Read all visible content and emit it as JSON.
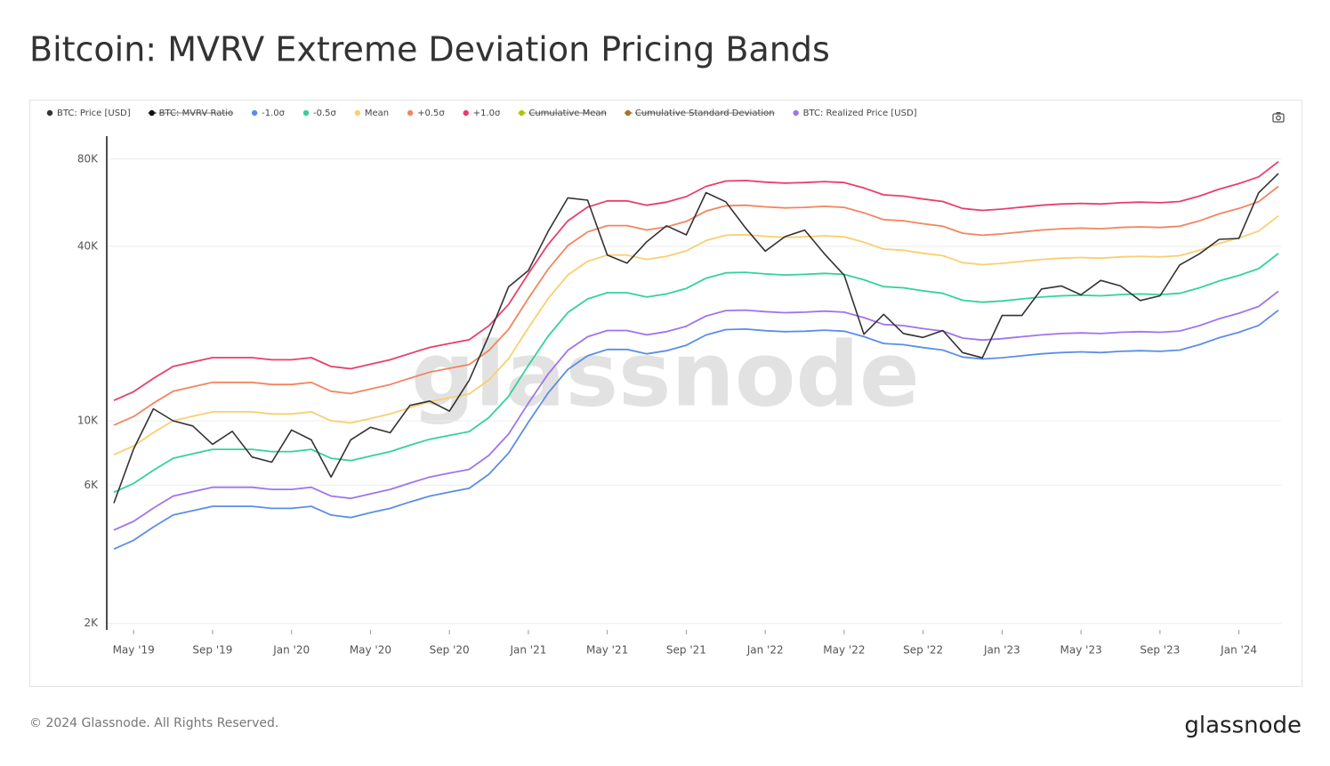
{
  "chart_data": {
    "type": "line",
    "title": "Bitcoin: MVRV Extreme Deviation Pricing Bands",
    "watermark": "glassnode",
    "log_scale": true,
    "grid": true,
    "legend": "top-left",
    "x": [
      "2019-04",
      "2019-05",
      "2019-06",
      "2019-07",
      "2019-08",
      "2019-09",
      "2019-10",
      "2019-11",
      "2019-12",
      "2020-01",
      "2020-02",
      "2020-03",
      "2020-04",
      "2020-05",
      "2020-06",
      "2020-07",
      "2020-08",
      "2020-09",
      "2020-10",
      "2020-11",
      "2020-12",
      "2021-01",
      "2021-02",
      "2021-03",
      "2021-04",
      "2021-05",
      "2021-06",
      "2021-07",
      "2021-08",
      "2021-09",
      "2021-10",
      "2021-11",
      "2021-12",
      "2022-01",
      "2022-02",
      "2022-03",
      "2022-04",
      "2022-05",
      "2022-06",
      "2022-07",
      "2022-08",
      "2022-09",
      "2022-10",
      "2022-11",
      "2022-12",
      "2023-01",
      "2023-02",
      "2023-03",
      "2023-04",
      "2023-05",
      "2023-06",
      "2023-07",
      "2023-08",
      "2023-09",
      "2023-10",
      "2023-11",
      "2023-12",
      "2024-01",
      "2024-02",
      "2024-03"
    ],
    "xlim": [
      "2019-04",
      "2024-03"
    ],
    "xticks": [
      {
        "value": "2019-05",
        "label": "May '19"
      },
      {
        "value": "2019-09",
        "label": "Sep '19"
      },
      {
        "value": "2020-01",
        "label": "Jan '20"
      },
      {
        "value": "2020-05",
        "label": "May '20"
      },
      {
        "value": "2020-09",
        "label": "Sep '20"
      },
      {
        "value": "2021-01",
        "label": "Jan '21"
      },
      {
        "value": "2021-05",
        "label": "May '21"
      },
      {
        "value": "2021-09",
        "label": "Sep '21"
      },
      {
        "value": "2022-01",
        "label": "Jan '22"
      },
      {
        "value": "2022-05",
        "label": "May '22"
      },
      {
        "value": "2022-09",
        "label": "Sep '22"
      },
      {
        "value": "2023-01",
        "label": "Jan '23"
      },
      {
        "value": "2023-05",
        "label": "May '23"
      },
      {
        "value": "2023-09",
        "label": "Sep '23"
      },
      {
        "value": "2024-01",
        "label": "Jan '24"
      }
    ],
    "ylim": [
      1900,
      96000
    ],
    "yticks": [
      {
        "value": 2000,
        "label": "2K"
      },
      {
        "value": 6000,
        "label": "6K"
      },
      {
        "value": 10000,
        "label": "10K"
      },
      {
        "value": 40000,
        "label": "40K"
      },
      {
        "value": 80000,
        "label": "80K"
      }
    ],
    "series": [
      {
        "name": "BTC: Price [USD]",
        "color": "#333333",
        "values": [
          5200,
          8000,
          11000,
          10000,
          9600,
          8300,
          9200,
          7500,
          7200,
          9300,
          8600,
          6400,
          8600,
          9500,
          9100,
          11300,
          11700,
          10800,
          13800,
          19700,
          29000,
          33000,
          45000,
          58800,
          57700,
          37300,
          35000,
          41500,
          47100,
          43800,
          61300,
          57000,
          46300,
          38500,
          43200,
          45500,
          37700,
          31800,
          19900,
          23300,
          20000,
          19400,
          20500,
          17200,
          16500,
          23100,
          23100,
          28500,
          29200,
          27200,
          30500,
          29200,
          26000,
          27000,
          34500,
          37700,
          42300,
          42600,
          61200,
          71300
        ]
      },
      {
        "name": "BTC: MVRV Ratio",
        "color": "#111111",
        "hidden": true
      },
      {
        "name": "-1.0σ",
        "color": "#5b8ee6",
        "values": [
          3610,
          3870,
          4300,
          4730,
          4900,
          5070,
          5070,
          5070,
          4990,
          4990,
          5070,
          4730,
          4640,
          4820,
          4990,
          5250,
          5500,
          5680,
          5850,
          6540,
          7740,
          9890,
          12470,
          15050,
          16770,
          17630,
          17630,
          17030,
          17460,
          18230,
          19780,
          20640,
          20730,
          20470,
          20300,
          20380,
          20550,
          20380,
          19520,
          18490,
          18320,
          17890,
          17540,
          16600,
          16340,
          16510,
          16770,
          17030,
          17200,
          17290,
          17200,
          17370,
          17460,
          17370,
          17540,
          18320,
          19350,
          20210,
          21330,
          24080
        ]
      },
      {
        "name": "-0.5σ",
        "color": "#33d1a0",
        "values": [
          5670,
          6080,
          6750,
          7430,
          7700,
          7970,
          7970,
          7970,
          7830,
          7830,
          7970,
          7430,
          7290,
          7560,
          7830,
          8240,
          8640,
          8910,
          9180,
          10260,
          12150,
          15530,
          19580,
          23630,
          26330,
          27680,
          27680,
          26730,
          27410,
          28620,
          31050,
          32400,
          32540,
          32130,
          31860,
          32000,
          32270,
          32000,
          30650,
          29030,
          28760,
          28080,
          27540,
          26060,
          25650,
          25920,
          26330,
          26730,
          27000,
          27140,
          27000,
          27270,
          27410,
          27270,
          27540,
          28760,
          30380,
          31730,
          33480,
          37800
        ]
      },
      {
        "name": "Mean",
        "color": "#f9cf70",
        "values": [
          7640,
          8190,
          9100,
          10010,
          10370,
          10740,
          10740,
          10740,
          10560,
          10560,
          10740,
          10010,
          9830,
          10190,
          10560,
          11100,
          11650,
          12010,
          12380,
          13830,
          16380,
          20930,
          26390,
          31850,
          35490,
          37310,
          37310,
          36040,
          36950,
          38580,
          41860,
          43680,
          43860,
          43320,
          42950,
          43130,
          43500,
          43130,
          41310,
          39130,
          38770,
          37860,
          37130,
          35130,
          34580,
          34940,
          35490,
          36040,
          36400,
          36580,
          36400,
          36760,
          36950,
          36760,
          37130,
          38770,
          40950,
          42770,
          45140,
          50960
        ]
      },
      {
        "name": "+0.5σ",
        "color": "#f3855f",
        "values": [
          9660,
          10350,
          11500,
          12650,
          13110,
          13570,
          13570,
          13570,
          13340,
          13340,
          13570,
          12650,
          12420,
          12880,
          13340,
          14030,
          14720,
          15180,
          15640,
          17480,
          20700,
          26450,
          33350,
          40250,
          44850,
          47150,
          47150,
          45540,
          46690,
          48760,
          52900,
          55200,
          55430,
          54740,
          54280,
          54510,
          54970,
          54510,
          52210,
          49450,
          48990,
          47840,
          46920,
          44390,
          43700,
          44160,
          44850,
          45540,
          46000,
          46230,
          46000,
          46460,
          46690,
          46460,
          46920,
          48990,
          51750,
          54050,
          57040,
          64400
        ]
      },
      {
        "name": "+1.0σ",
        "color": "#e83f6a",
        "values": [
          11760,
          12600,
          14000,
          15400,
          15960,
          16520,
          16520,
          16520,
          16240,
          16240,
          16520,
          15400,
          15120,
          15680,
          16240,
          17080,
          17920,
          18480,
          19040,
          21280,
          25200,
          32200,
          40600,
          49000,
          54600,
          57400,
          57400,
          55440,
          56840,
          59360,
          64400,
          67200,
          67480,
          66640,
          66080,
          66360,
          66920,
          66360,
          63560,
          60200,
          59640,
          58240,
          57120,
          54040,
          53200,
          53760,
          54600,
          55440,
          56000,
          56280,
          56000,
          56560,
          56840,
          56560,
          57120,
          59640,
          63000,
          65800,
          69440,
          78400
        ]
      },
      {
        "name": "Cumulative Mean",
        "color": "#b5c400",
        "hidden": true
      },
      {
        "name": "Cumulative Standard Deviation",
        "color": "#a0782a",
        "hidden": true
      },
      {
        "name": "BTC: Realized Price [USD]",
        "color": "#a074ee",
        "values": [
          4200,
          4500,
          5000,
          5500,
          5700,
          5900,
          5900,
          5900,
          5800,
          5800,
          5900,
          5500,
          5400,
          5600,
          5800,
          6100,
          6400,
          6600,
          6800,
          7600,
          9000,
          11500,
          14500,
          17500,
          19500,
          20500,
          20500,
          19800,
          20300,
          21200,
          23000,
          24000,
          24100,
          23800,
          23600,
          23700,
          23900,
          23700,
          22700,
          21500,
          21300,
          20800,
          20400,
          19300,
          19000,
          19200,
          19500,
          19800,
          20000,
          20100,
          20000,
          20200,
          20300,
          20200,
          20400,
          21300,
          22500,
          23500,
          24800,
          28000
        ]
      }
    ]
  },
  "footer": "© 2024 Glassnode. All Rights Reserved.",
  "brand": "glassnode"
}
